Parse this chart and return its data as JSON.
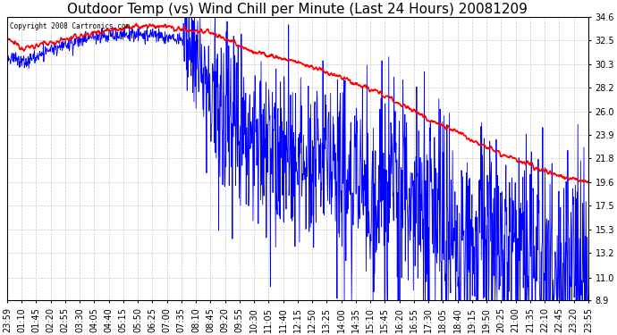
{
  "title": "Outdoor Temp (vs) Wind Chill per Minute (Last 24 Hours) 20081209",
  "copyright_text": "Copyright 2008 Cartronics.com",
  "yticks": [
    8.9,
    11.0,
    13.2,
    15.3,
    17.5,
    19.6,
    21.8,
    23.9,
    26.0,
    28.2,
    30.3,
    32.5,
    34.6
  ],
  "ymin": 8.9,
  "ymax": 34.6,
  "background_color": "#ffffff",
  "plot_bg_color": "#ffffff",
  "grid_color": "#bbbbbb",
  "temp_color": "#ff0000",
  "windchill_color": "#0000ff",
  "title_fontsize": 11,
  "tick_fontsize": 7,
  "x_labels": [
    "23:59",
    "01:10",
    "01:45",
    "02:20",
    "02:55",
    "03:30",
    "04:05",
    "04:40",
    "05:15",
    "05:50",
    "06:25",
    "07:00",
    "07:35",
    "08:10",
    "08:45",
    "09:20",
    "09:55",
    "10:30",
    "11:05",
    "11:40",
    "12:15",
    "12:50",
    "13:25",
    "14:00",
    "14:35",
    "15:10",
    "15:45",
    "16:20",
    "16:55",
    "17:30",
    "18:05",
    "18:40",
    "19:15",
    "19:50",
    "20:25",
    "21:00",
    "21:35",
    "22:10",
    "22:45",
    "23:20",
    "23:55"
  ],
  "temp_x": [
    0.0,
    0.03,
    0.07,
    0.12,
    0.18,
    0.25,
    0.3,
    0.35,
    0.38,
    0.42,
    0.5,
    0.58,
    0.65,
    0.72,
    0.8,
    0.88,
    0.95,
    1.0
  ],
  "temp_y": [
    32.5,
    31.8,
    32.2,
    32.8,
    33.5,
    33.8,
    33.5,
    33.2,
    32.5,
    31.5,
    30.5,
    29.0,
    27.5,
    25.5,
    23.5,
    21.5,
    20.2,
    19.6
  ],
  "wc_x": [
    0.0,
    0.03,
    0.07,
    0.1,
    0.15,
    0.2,
    0.25,
    0.3,
    0.33,
    0.35,
    0.4,
    0.45,
    0.5,
    0.58,
    0.65,
    0.72,
    0.8,
    0.88,
    0.95,
    1.0
  ],
  "wc_y": [
    31.0,
    30.5,
    31.5,
    32.0,
    32.8,
    33.0,
    33.0,
    32.5,
    30.5,
    27.5,
    25.5,
    24.0,
    22.5,
    21.0,
    19.5,
    17.5,
    15.5,
    13.5,
    12.0,
    11.5
  ],
  "wc_noise_std_x": [
    0.0,
    0.3,
    0.32,
    0.45,
    0.6,
    0.8,
    1.0
  ],
  "wc_noise_std_y": [
    0.3,
    0.3,
    3.5,
    4.0,
    4.5,
    5.0,
    5.5
  ]
}
